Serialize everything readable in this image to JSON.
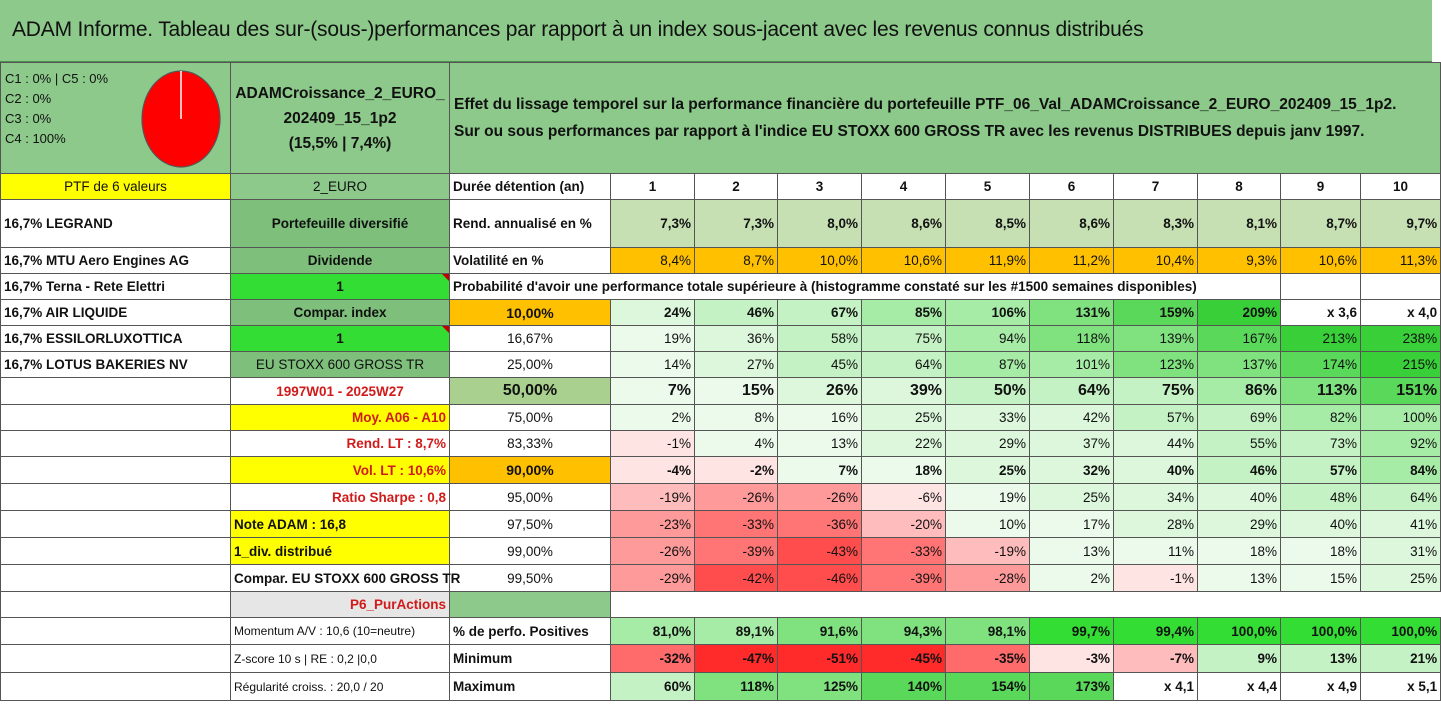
{
  "title": "ADAM Informe. Tableau des sur-(sous-)performances par rapport à un index sous-jacent avec les revenus connus distribués",
  "composition": {
    "lines": [
      "C1 : 0% | C5 : 0%",
      "C2 : 0%",
      "C3 : 0%",
      "C4 : 100%"
    ],
    "pie_color": "#ff0000"
  },
  "portfolio": {
    "name_line1": "ADAMCroissance_2_EURO_",
    "name_line2": "202409_15_1p2",
    "name_line3": "(15,5% | 7,4%)"
  },
  "description": {
    "line1": "Effet du lissage temporel sur la performance financière du portefeuille PTF_06_Val_ADAMCroissance_2_EURO_202409_15_1p2.",
    "line2": "Sur ou sous performances par rapport à l'indice EU STOXX 600 GROSS TR avec les revenus DISTRIBUES depuis janv 1997."
  },
  "ptf_label": "PTF de 6 valeurs",
  "ptf_code": "2_EURO",
  "holdings": [
    "16,7% LEGRAND",
    "16,7% MTU Aero Engines AG",
    "16,7% Terna - Rete Elettri",
    "16,7% AIR LIQUIDE",
    "16,7% ESSILORLUXOTTICA",
    "16,7% LOTUS BAKERIES NV"
  ],
  "attributes": {
    "diversified": "Portefeuille diversifié",
    "dividend_label": "Dividende",
    "dividend_value": "1",
    "compar_index_label": "Compar. index",
    "compar_index_value": "1",
    "index_name": "EU STOXX 600 GROSS TR",
    "period": "1997W01 - 2025W27",
    "moy": "Moy. A06 - A10",
    "rend_lt": "Rend. LT : 8,7%",
    "vol_lt": "Vol. LT : 10,6%",
    "sharpe": "Ratio Sharpe : 0,8",
    "note": "Note ADAM : 16,8",
    "div": "1_div. distribué",
    "compar_full": "Compar. EU STOXX 600 GROSS TR",
    "p6": "P6_PurActions",
    "momentum": "Momentum A/V : 10,6 (10=neutre)",
    "zscore": "Z-score 10 s | RE : 0,2 |0,0",
    "regularite": "Régularité croiss. : 20,0 / 20"
  },
  "header": {
    "label": "Durée détention (an)",
    "years": [
      "1",
      "2",
      "3",
      "4",
      "5",
      "6",
      "7",
      "8",
      "9",
      "10"
    ]
  },
  "rend": {
    "label": "Rend. annualisé en %",
    "values": [
      "7,3%",
      "7,3%",
      "8,0%",
      "8,6%",
      "8,5%",
      "8,6%",
      "8,3%",
      "8,1%",
      "8,7%",
      "9,7%"
    ]
  },
  "vol": {
    "label": "Volatilité en %",
    "values": [
      "8,4%",
      "8,7%",
      "10,0%",
      "10,6%",
      "11,9%",
      "11,2%",
      "10,4%",
      "9,3%",
      "10,6%",
      "11,3%"
    ]
  },
  "proba_title": "Probabilité d'avoir une performance totale supérieure à (histogramme constaté sur les #1500 semaines disponibles)",
  "prob_rows": [
    {
      "p": "10,00%",
      "values": [
        "24%",
        "46%",
        "67%",
        "85%",
        "106%",
        "131%",
        "159%",
        "209%",
        "x 3,6",
        "x 4,0"
      ]
    },
    {
      "p": "16,67%",
      "values": [
        "19%",
        "36%",
        "58%",
        "75%",
        "94%",
        "118%",
        "139%",
        "167%",
        "213%",
        "238%"
      ]
    },
    {
      "p": "25,00%",
      "values": [
        "14%",
        "27%",
        "45%",
        "64%",
        "87%",
        "101%",
        "123%",
        "137%",
        "174%",
        "215%"
      ]
    },
    {
      "p": "50,00%",
      "values": [
        "7%",
        "15%",
        "26%",
        "39%",
        "50%",
        "64%",
        "75%",
        "86%",
        "113%",
        "151%"
      ]
    },
    {
      "p": "75,00%",
      "values": [
        "2%",
        "8%",
        "16%",
        "25%",
        "33%",
        "42%",
        "57%",
        "69%",
        "82%",
        "100%"
      ]
    },
    {
      "p": "83,33%",
      "values": [
        "-1%",
        "4%",
        "13%",
        "22%",
        "29%",
        "37%",
        "44%",
        "55%",
        "73%",
        "92%"
      ]
    },
    {
      "p": "90,00%",
      "values": [
        "-4%",
        "-2%",
        "7%",
        "18%",
        "25%",
        "32%",
        "40%",
        "46%",
        "57%",
        "84%"
      ]
    },
    {
      "p": "95,00%",
      "values": [
        "-19%",
        "-26%",
        "-26%",
        "-6%",
        "19%",
        "25%",
        "34%",
        "40%",
        "48%",
        "64%"
      ]
    },
    {
      "p": "97,50%",
      "values": [
        "-23%",
        "-33%",
        "-36%",
        "-20%",
        "10%",
        "17%",
        "28%",
        "29%",
        "40%",
        "41%"
      ]
    },
    {
      "p": "99,00%",
      "values": [
        "-26%",
        "-39%",
        "-43%",
        "-33%",
        "-19%",
        "13%",
        "11%",
        "18%",
        "18%",
        "31%"
      ]
    },
    {
      "p": "99,50%",
      "values": [
        "-29%",
        "-42%",
        "-46%",
        "-39%",
        "-28%",
        "2%",
        "-1%",
        "13%",
        "15%",
        "25%"
      ]
    }
  ],
  "stats": [
    {
      "label": "% de perfo. Positives",
      "values": [
        "81,0%",
        "89,1%",
        "91,6%",
        "94,3%",
        "98,1%",
        "99,7%",
        "99,4%",
        "100,0%",
        "100,0%",
        "100,0%"
      ]
    },
    {
      "label": "Minimum",
      "values": [
        "-32%",
        "-47%",
        "-51%",
        "-45%",
        "-35%",
        "-3%",
        "-7%",
        "9%",
        "13%",
        "21%"
      ]
    },
    {
      "label": "Maximum",
      "values": [
        "60%",
        "118%",
        "125%",
        "140%",
        "154%",
        "173%",
        "x 4,1",
        "x 4,4",
        "x 4,9",
        "x 5,1"
      ]
    }
  ],
  "colors": {
    "title_green": "#8cc98a",
    "yellow": "#ffff00",
    "orange": "#ffc000",
    "bright_green": "#33dd33",
    "rend_green": "#c6e0b4",
    "pale_green": "#a9d08e",
    "red_text": "#d11a1a"
  }
}
